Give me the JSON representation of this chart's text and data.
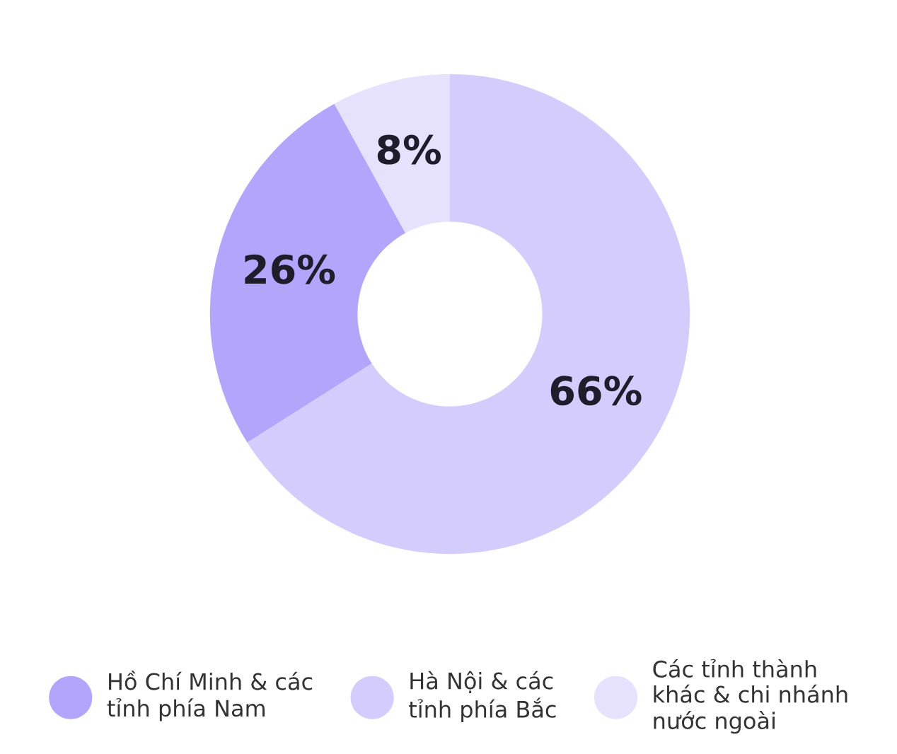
{
  "chart_data": {
    "type": "donut",
    "categories": [
      "Hồ Chí Minh & các\ntỉnh phía Nam",
      "Hà Nội & các\ntỉnh phía Bắc",
      "Các tỉnh thành\nkhác & chi nhánh\nnước ngoài"
    ],
    "values": [
      26,
      66,
      8
    ],
    "colors": [
      "#b3a5fb",
      "#d4ccfc",
      "#e6e1fd"
    ],
    "value_labels": [
      "26%",
      "66%",
      "8%"
    ],
    "legend": "bottom"
  }
}
